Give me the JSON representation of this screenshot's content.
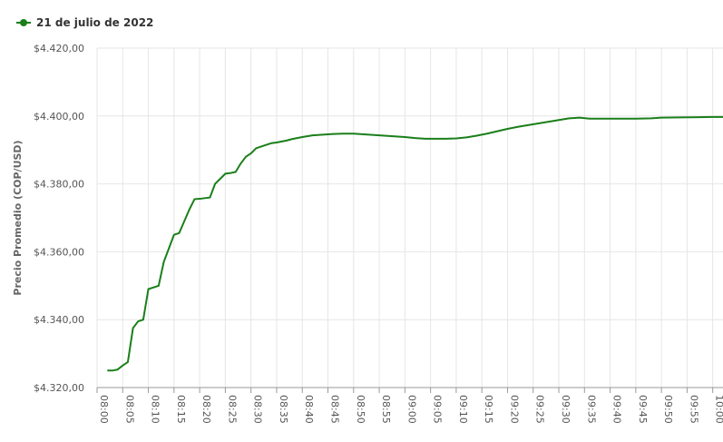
{
  "chart_data": {
    "type": "line",
    "legend_position": "top-left",
    "y_label": "Precio Promedio (COP/USD)",
    "grid": true,
    "x": [
      "08:02",
      "08:03",
      "08:04",
      "08:05",
      "08:06",
      "08:07",
      "08:08",
      "08:09",
      "08:10",
      "08:11",
      "08:12",
      "08:13",
      "08:14",
      "08:15",
      "08:16",
      "08:17",
      "08:18",
      "08:19",
      "08:20",
      "08:21",
      "08:22",
      "08:23",
      "08:24",
      "08:25",
      "08:26",
      "08:27",
      "08:28",
      "08:29",
      "08:30",
      "08:31",
      "08:32",
      "08:33",
      "08:34",
      "08:35",
      "08:36",
      "08:37",
      "08:38",
      "08:39",
      "08:40",
      "08:42",
      "08:44",
      "08:46",
      "08:48",
      "08:50",
      "08:52",
      "08:54",
      "08:56",
      "08:58",
      "09:00",
      "09:02",
      "09:04",
      "09:06",
      "09:08",
      "09:10",
      "09:12",
      "09:14",
      "09:16",
      "09:18",
      "09:20",
      "09:22",
      "09:24",
      "09:26",
      "09:28",
      "09:30",
      "09:32",
      "09:34",
      "09:36",
      "09:40",
      "09:45",
      "09:48",
      "09:50",
      "09:55",
      "10:00",
      "10:02"
    ],
    "series": [
      {
        "name": "21 de julio de 2022",
        "color": "#1a7f1a",
        "values": [
          4325,
          4325,
          4325.3,
          4326.5,
          4327.5,
          4337.5,
          4339.5,
          4340,
          4349,
          4349.5,
          4350,
          4357,
          4361,
          4365,
          4365.5,
          4369,
          4372.5,
          4375.5,
          4375.6,
          4375.8,
          4376,
          4380,
          4381.5,
          4383,
          4383.2,
          4383.5,
          4386,
          4388,
          4389,
          4390.5,
          4391,
          4391.5,
          4392,
          4392.2,
          4392.5,
          4392.8,
          4393.2,
          4393.5,
          4393.8,
          4394.3,
          4394.5,
          4394.7,
          4394.8,
          4394.8,
          4394.6,
          4394.4,
          4394.2,
          4394,
          4393.8,
          4393.5,
          4393.3,
          4393.3,
          4393.3,
          4393.4,
          4393.7,
          4394.2,
          4394.8,
          4395.5,
          4396.2,
          4396.8,
          4397.3,
          4397.8,
          4398.3,
          4398.8,
          4399.3,
          4399.5,
          4399.2,
          4399.2,
          4399.2,
          4399.3,
          4399.5,
          4399.6,
          4399.7,
          4399.7
        ]
      }
    ],
    "xlim": [
      "08:00",
      "10:02"
    ],
    "xticks": [
      "08:00",
      "08:05",
      "08:10",
      "08:15",
      "08:20",
      "08:25",
      "08:30",
      "08:35",
      "08:40",
      "08:45",
      "08:50",
      "08:55",
      "09:00",
      "09:05",
      "09:10",
      "09:15",
      "09:20",
      "09:25",
      "09:30",
      "09:35",
      "09:40",
      "09:45",
      "09:50",
      "09:55",
      "10:00"
    ],
    "ylim": [
      4320,
      4420
    ],
    "yticks": [
      {
        "value": 4320,
        "label": "$4.320,00"
      },
      {
        "value": 4340,
        "label": "$4.340,00"
      },
      {
        "value": 4360,
        "label": "$4.360,00"
      },
      {
        "value": 4380,
        "label": "$4.380,00"
      },
      {
        "value": 4400,
        "label": "$4.400,00"
      },
      {
        "value": 4420,
        "label": "$4.420,00"
      }
    ]
  }
}
